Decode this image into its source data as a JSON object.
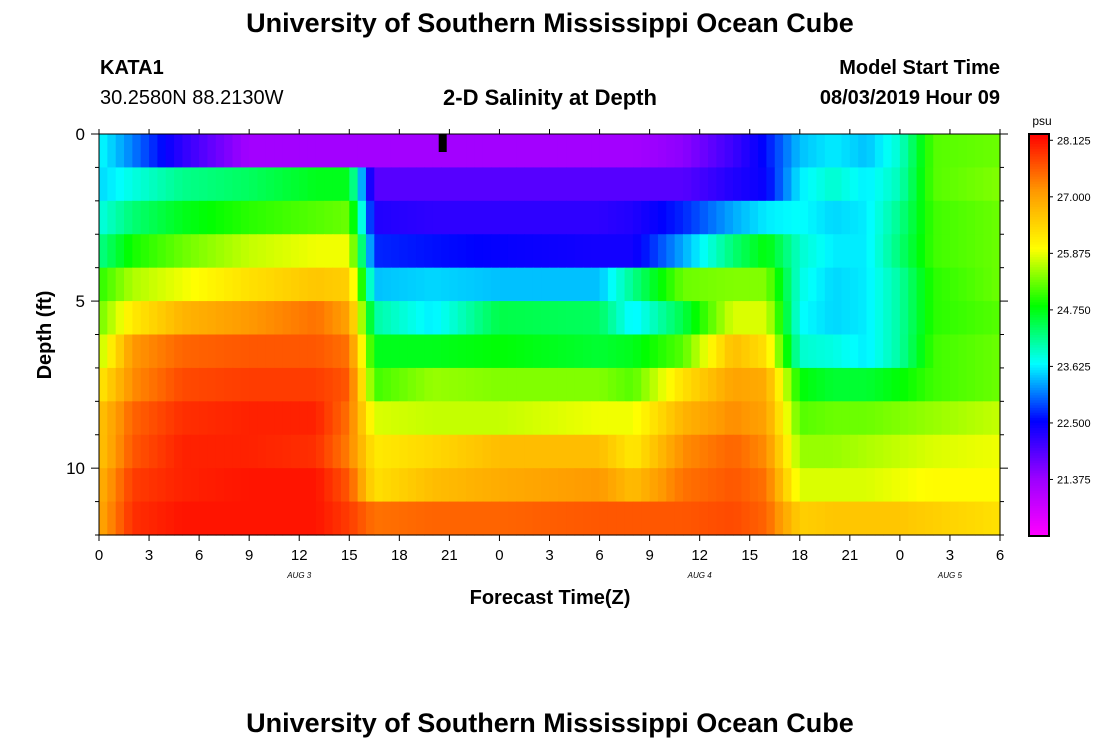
{
  "page": {
    "title_top": "University of Southern Mississippi Ocean Cube",
    "title_bottom": "University of Southern Mississippi Ocean Cube",
    "station_id": "KATA1",
    "station_coords": "30.2580N 88.2130W",
    "plot_title": "2-D Salinity at Depth",
    "model_start_label": "Model Start Time",
    "model_start_value": "08/03/2019 Hour 09"
  },
  "colors": {
    "colormap": [
      "#ff00ff",
      "#9b00ff",
      "#0000ff",
      "#00ffff",
      "#00ff00",
      "#ffff00",
      "#ff9900",
      "#ff0000"
    ],
    "marker": "#000000"
  },
  "chart_data": {
    "type": "heatmap",
    "variable": "Salinity",
    "units": "psu",
    "xlabel": "Forecast Time(Z)",
    "ylabel": "Depth (ft)",
    "x_hours_range": [
      0,
      54
    ],
    "x_tick_labels": [
      "0",
      "3",
      "6",
      "9",
      "12",
      "15",
      "18",
      "21",
      "0",
      "3",
      "6",
      "9",
      "12",
      "15",
      "18",
      "21",
      "0",
      "3",
      "6"
    ],
    "date_labels": [
      {
        "text": "AUG 3",
        "hour": 12
      },
      {
        "text": "AUG 4",
        "hour": 36
      },
      {
        "text": "AUG 5",
        "hour": 51
      }
    ],
    "ylim": [
      0,
      12
    ],
    "y_major_ticks": [
      0,
      5,
      10
    ],
    "depth_layers": [
      0,
      1,
      2,
      3,
      4,
      5,
      6,
      7,
      8,
      9,
      10,
      11,
      12
    ],
    "layer_centers": [
      0.5,
      1.5,
      2.5,
      3.5,
      4.5,
      5.5,
      6.5,
      7.5,
      8.5,
      9.5,
      10.5,
      11.5
    ],
    "time_knots": [
      0,
      2,
      5,
      9,
      13,
      15,
      16.5,
      20,
      24,
      30,
      32,
      35,
      38,
      40,
      42,
      44,
      46,
      48,
      50,
      54
    ],
    "values": [
      [
        23.7,
        23.1,
        22.2,
        21.3,
        21.3,
        21.3,
        21.3,
        21.3,
        21.3,
        21.3,
        21.3,
        21.5,
        22.1,
        22.6,
        23.4,
        23.6,
        23.4,
        23.9,
        25.2,
        25.3
      ],
      [
        23.5,
        23.8,
        24.2,
        24.4,
        24.7,
        24.7,
        21.9,
        21.9,
        21.9,
        21.9,
        21.9,
        21.9,
        22.3,
        22.5,
        23.6,
        23.9,
        23.6,
        24.0,
        25.2,
        25.4
      ],
      [
        23.8,
        24.3,
        24.7,
        25.0,
        25.2,
        25.3,
        22.3,
        22.2,
        22.2,
        22.2,
        22.3,
        22.7,
        23.3,
        23.6,
        23.7,
        23.5,
        23.6,
        24.2,
        25.1,
        25.3
      ],
      [
        24.2,
        24.9,
        25.3,
        25.7,
        25.9,
        25.9,
        22.7,
        22.6,
        22.5,
        22.4,
        22.4,
        23.3,
        24.3,
        24.8,
        23.9,
        23.6,
        23.6,
        24.3,
        25.1,
        25.3
      ],
      [
        25.0,
        25.6,
        25.9,
        26.3,
        26.6,
        26.5,
        23.4,
        23.5,
        23.4,
        23.4,
        24.2,
        25.3,
        25.4,
        25.4,
        23.8,
        23.5,
        23.6,
        24.1,
        25.0,
        25.3
      ],
      [
        25.3,
        26.2,
        26.8,
        27.1,
        27.4,
        27.0,
        24.1,
        23.6,
        24.5,
        24.4,
        23.6,
        24.5,
        25.8,
        25.8,
        23.7,
        23.5,
        23.6,
        24.1,
        25.0,
        25.2
      ],
      [
        25.6,
        27.1,
        27.5,
        27.6,
        27.6,
        27.4,
        24.7,
        24.7,
        24.8,
        24.6,
        24.7,
        25.2,
        26.7,
        26.3,
        23.9,
        23.8,
        23.6,
        24.1,
        25.1,
        25.3
      ],
      [
        26.2,
        27.2,
        27.7,
        27.8,
        27.8,
        27.6,
        25.1,
        25.5,
        25.4,
        25.4,
        25.2,
        26.3,
        27.0,
        26.9,
        24.8,
        24.6,
        24.6,
        24.8,
        25.1,
        25.3
      ],
      [
        26.6,
        27.5,
        27.9,
        28.0,
        28.0,
        27.4,
        25.8,
        25.7,
        25.7,
        25.9,
        25.9,
        26.8,
        27.2,
        27.0,
        25.2,
        25.3,
        25.3,
        25.4,
        25.5,
        25.7
      ],
      [
        26.6,
        27.6,
        28.0,
        28.0,
        27.9,
        27.3,
        26.2,
        26.4,
        26.7,
        26.7,
        26.2,
        27.2,
        27.5,
        27.2,
        25.5,
        25.5,
        25.6,
        25.7,
        25.8,
        25.9
      ],
      [
        26.8,
        27.8,
        28.0,
        28.1,
        28.1,
        27.6,
        26.3,
        26.7,
        26.9,
        27.1,
        26.7,
        27.4,
        27.6,
        27.4,
        25.8,
        25.8,
        25.8,
        25.9,
        26.0,
        26.0
      ],
      [
        26.9,
        27.9,
        28.1,
        28.1,
        28.1,
        27.8,
        27.4,
        27.5,
        27.5,
        27.6,
        27.6,
        27.6,
        27.7,
        27.5,
        26.5,
        26.6,
        26.6,
        26.6,
        26.5,
        26.3
      ]
    ],
    "colorbar": {
      "label": "psu",
      "min": 20.25,
      "max": 28.25,
      "tick_labels": [
        "21.375",
        "22.500",
        "23.625",
        "24.750",
        "25.875",
        "27.000",
        "28.125"
      ],
      "tick_values": [
        21.375,
        22.5,
        23.625,
        24.75,
        25.875,
        27.0,
        28.125
      ]
    },
    "marker_hour": 20.6
  }
}
